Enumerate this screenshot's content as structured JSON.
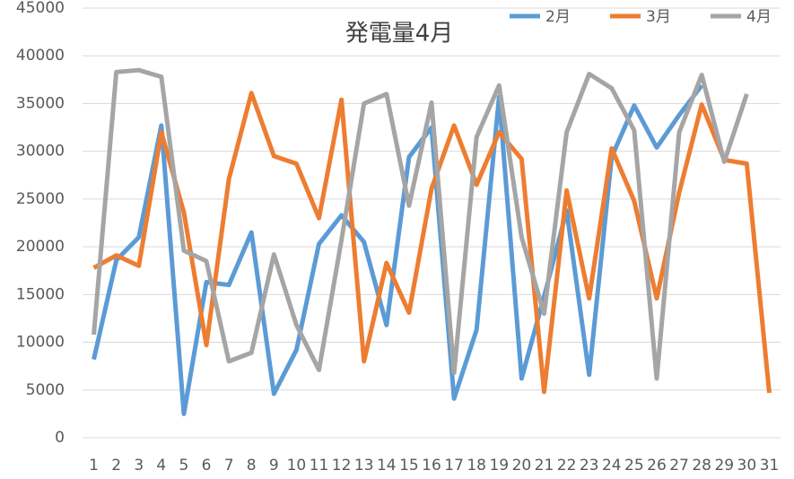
{
  "chart_data": {
    "type": "line",
    "title": "発電量4月",
    "categories": [
      "1",
      "2",
      "3",
      "4",
      "5",
      "6",
      "7",
      "8",
      "9",
      "10",
      "11",
      "12",
      "13",
      "14",
      "15",
      "16",
      "17",
      "18",
      "19",
      "20",
      "21",
      "22",
      "23",
      "24",
      "25",
      "26",
      "27",
      "28",
      "29",
      "30",
      "31"
    ],
    "series": [
      {
        "name": "2月",
        "color": "#5b9bd5",
        "values": [
          8200,
          18600,
          21000,
          32700,
          2500,
          16300,
          16000,
          21500,
          4600,
          9200,
          20300,
          23300,
          20500,
          11800,
          29400,
          32500,
          4100,
          11300,
          35700,
          6200,
          14800,
          23800,
          6600,
          29400,
          34800,
          30400,
          33800,
          36900,
          null,
          null,
          null
        ]
      },
      {
        "name": "3月",
        "color": "#ed7d31",
        "values": [
          17800,
          19100,
          18000,
          32000,
          23600,
          9700,
          27100,
          36100,
          29500,
          28700,
          23000,
          35400,
          8000,
          18300,
          13100,
          26100,
          32700,
          26500,
          32000,
          29200,
          4800,
          25900,
          14600,
          30300,
          24800,
          14600,
          25700,
          34900,
          29100,
          28700,
          4700
        ]
      },
      {
        "name": "4月",
        "color": "#a5a5a5",
        "values": [
          10800,
          38300,
          38500,
          37800,
          19600,
          18500,
          8000,
          8900,
          19200,
          11800,
          7100,
          20700,
          35000,
          36000,
          24300,
          35100,
          6800,
          31500,
          36900,
          21000,
          13000,
          32000,
          38100,
          36600,
          32200,
          6200,
          32000,
          38000,
          28900,
          36000,
          null
        ]
      }
    ],
    "ylim": [
      0,
      45000
    ],
    "yticks": [
      0,
      5000,
      10000,
      15000,
      20000,
      25000,
      30000,
      35000,
      40000,
      45000
    ],
    "grid": true,
    "legend": "top-right"
  }
}
